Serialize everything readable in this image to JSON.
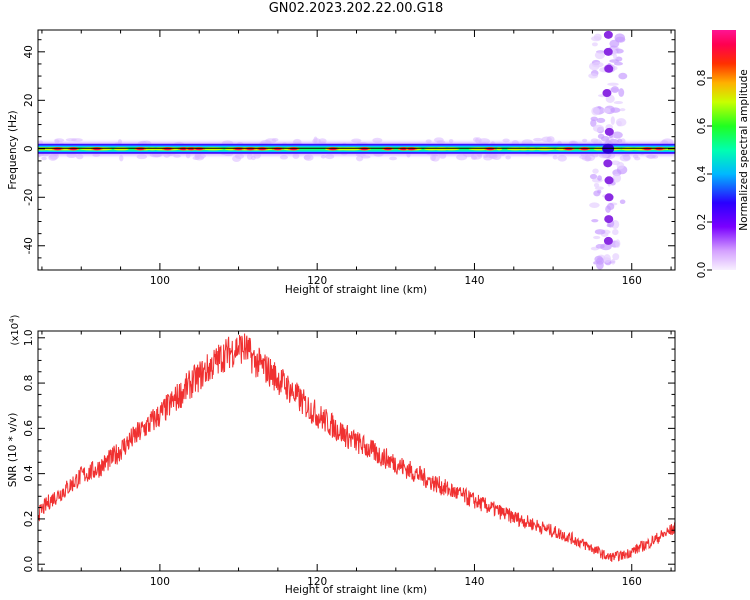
{
  "title": "GN02.2023.202.22.00.G18",
  "chart_data": [
    {
      "type": "heatmap",
      "xlabel": "Height of straight line (km)",
      "ylabel": "Frequency (Hz)",
      "xlim": [
        84.5,
        165.5
      ],
      "ylim": [
        -50,
        49
      ],
      "xticks": [
        100,
        120,
        140,
        160
      ],
      "yticks": [
        -40,
        -20,
        0,
        20,
        40
      ],
      "horizontal_band": {
        "frequency": 0,
        "x_range": [
          84.5,
          165.5
        ],
        "peak_points_km": [
          87,
          89,
          92,
          97.5,
          101,
          103,
          104,
          105,
          110,
          111.5,
          113,
          115,
          117,
          122,
          126,
          129,
          131,
          132,
          142,
          152,
          154,
          157,
          162,
          163.5
        ]
      },
      "vertical_band": {
        "x": 157,
        "frequency_range": [
          -50,
          49
        ],
        "strong_points_hz": [
          47,
          40,
          33,
          23,
          7,
          -6,
          -13,
          -20,
          -29,
          -38
        ]
      },
      "colorbar": {
        "label": "Normalized spectral amplitude",
        "ticks": [
          0.0,
          0.2,
          0.4,
          0.6,
          0.8
        ],
        "range": [
          0,
          1
        ],
        "colors": [
          "#f8f0ff",
          "#9b30ff",
          "#3300ff",
          "#00c0ff",
          "#00ff60",
          "#c8ff00",
          "#ff8800",
          "#ff0040",
          "#ff1493"
        ]
      }
    },
    {
      "type": "line",
      "xlabel": "Height of straight line (km)",
      "ylabel": "SNR (10 * v/v)",
      "y_multiplier": "(x10",
      "y_multiplier_exp": "4",
      "y_multiplier_close": ")",
      "xlim": [
        84.5,
        165.5
      ],
      "ylim": [
        -0.03,
        1.03
      ],
      "xticks": [
        100,
        120,
        140,
        160
      ],
      "yticks": [
        0.0,
        0.2,
        0.4,
        0.6,
        0.8,
        1.0
      ],
      "color": "#f03030",
      "series": [
        {
          "x": [
            84.5,
            86,
            88,
            90,
            92,
            94,
            96,
            98,
            100,
            102,
            104,
            106,
            108,
            110,
            111,
            112,
            114,
            116,
            118,
            120,
            124,
            128,
            132,
            136,
            140,
            144,
            148,
            152,
            155,
            157,
            159,
            162,
            165.5
          ],
          "y": [
            0.22,
            0.28,
            0.33,
            0.39,
            0.42,
            0.47,
            0.54,
            0.6,
            0.66,
            0.73,
            0.8,
            0.86,
            0.92,
            0.96,
            0.95,
            0.9,
            0.85,
            0.79,
            0.72,
            0.66,
            0.56,
            0.48,
            0.41,
            0.34,
            0.28,
            0.22,
            0.17,
            0.12,
            0.07,
            0.03,
            0.04,
            0.09,
            0.16
          ]
        }
      ]
    }
  ]
}
